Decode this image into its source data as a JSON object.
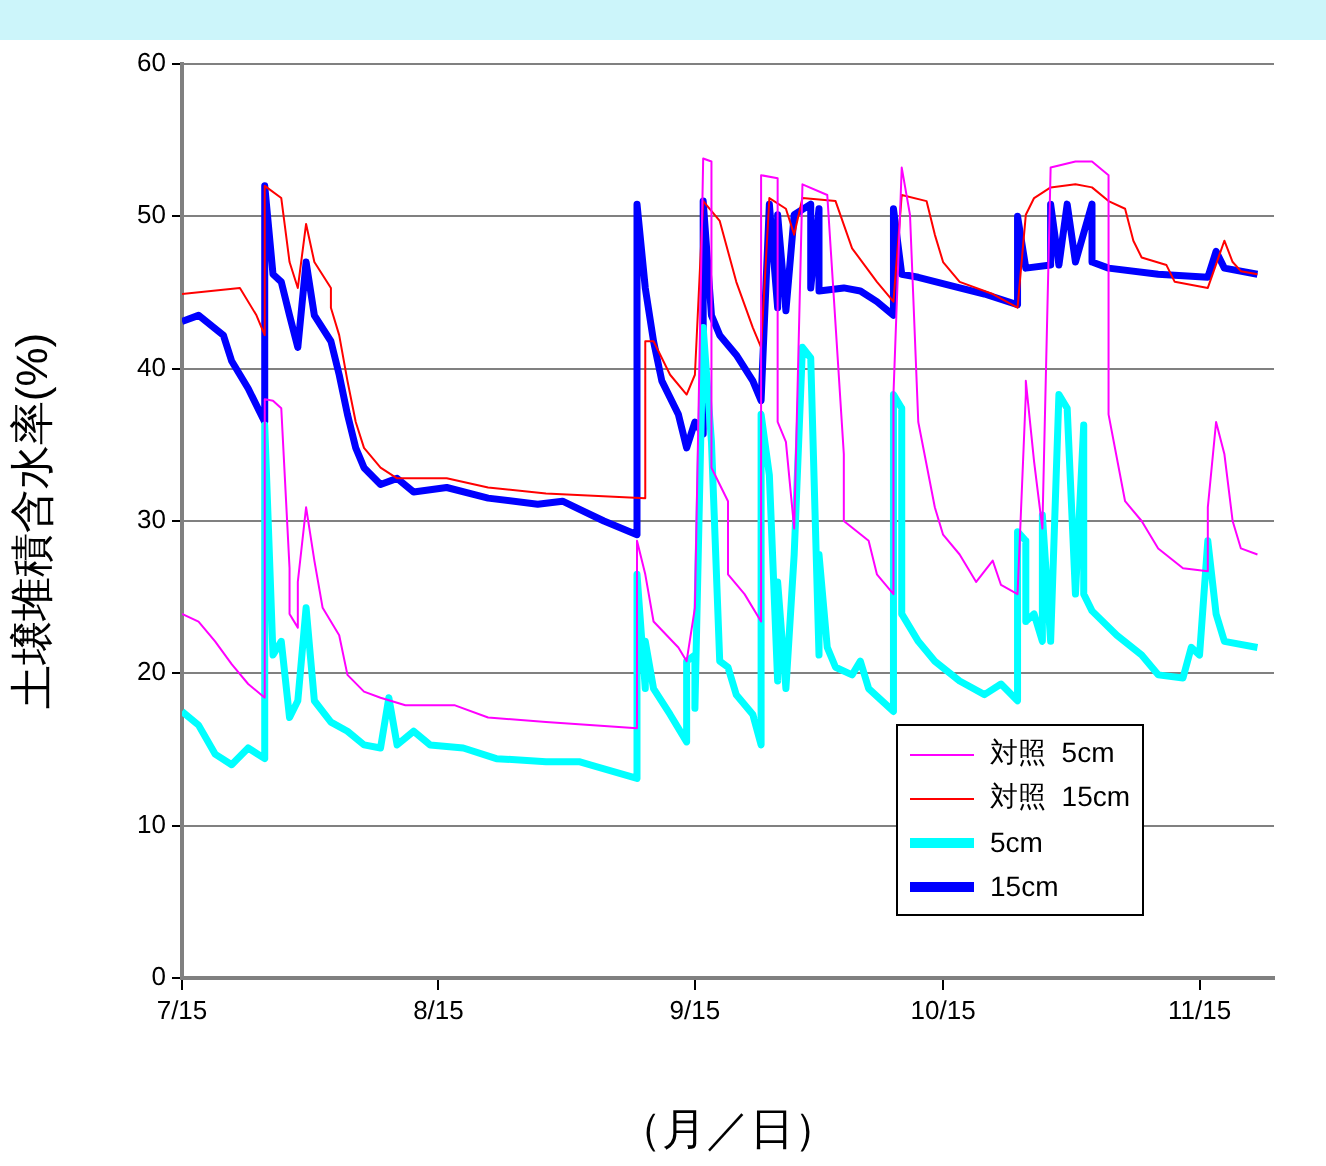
{
  "chart_data": {
    "type": "line",
    "xlabel": "（月／日）",
    "ylabel": "土壌堆積含水率(%)",
    "xlim": [
      "--07-15",
      "--11-24"
    ],
    "xticks": [
      {
        "value": "--07-15",
        "label": "7/15"
      },
      {
        "value": "--08-15",
        "label": "8/15"
      },
      {
        "value": "--09-15",
        "label": "9/15"
      },
      {
        "value": "--10-15",
        "label": "10/15"
      },
      {
        "value": "--11-15",
        "label": "11/15"
      }
    ],
    "ylim": [
      0,
      60
    ],
    "yticks": [
      0,
      10,
      20,
      30,
      40,
      50,
      60
    ],
    "grid": "y",
    "legend": "bottom right",
    "marker": "none",
    "line_style": "solid",
    "series": [
      {
        "name": "対照  5cm",
        "color": "#ff00ff",
        "x": [
          "--07-15",
          "--07-17",
          "--07-19",
          "--07-21",
          "--07-23",
          "--07-25",
          "--07-25",
          "--07-26",
          "--07-27",
          "--07-28",
          "--07-28",
          "--07-29",
          "--07-29",
          "--07-30",
          "--07-31",
          "--08-01",
          "--08-03",
          "--08-04",
          "--08-06",
          "--08-08",
          "--08-11",
          "--08-17",
          "--08-21",
          "--08-28",
          "--09-08",
          "--09-08",
          "--09-09",
          "--09-10",
          "--09-13",
          "--09-14",
          "--09-15",
          "--09-16",
          "--09-17",
          "--09-17",
          "--09-19",
          "--09-19",
          "--09-21",
          "--09-23",
          "--09-23",
          "--09-25",
          "--09-25",
          "--09-26",
          "--09-27",
          "--09-28",
          "--10-01",
          "--10-03",
          "--10-03",
          "--10-06",
          "--10-07",
          "--10-09",
          "--10-09",
          "--10-10",
          "--10-11",
          "--10-12",
          "--10-14",
          "--10-15",
          "--10-17",
          "--10-19",
          "--10-21",
          "--10-22",
          "--10-24",
          "--10-25",
          "--10-25",
          "--10-26",
          "--10-27",
          "--10-28",
          "--10-31",
          "--11-02",
          "--11-04",
          "--11-04",
          "--11-06",
          "--11-08",
          "--11-10",
          "--11-13",
          "--11-16",
          "--11-16",
          "--11-17",
          "--11-18",
          "--11-19",
          "--11-20",
          "--11-22"
        ],
        "values": [
          23.9,
          23.4,
          22.1,
          20.6,
          19.3,
          18.4,
          38,
          37.9,
          37.4,
          26.9,
          23.9,
          23,
          26,
          30.9,
          27.4,
          24.3,
          22.5,
          19.9,
          18.8,
          18.4,
          17.9,
          17.9,
          17.1,
          16.8,
          16.4,
          28.7,
          26.5,
          23.4,
          21.7,
          20.8,
          24.3,
          53.8,
          53.6,
          33.5,
          31.3,
          26.5,
          25.2,
          23.4,
          52.7,
          52.5,
          36.5,
          35.2,
          29.5,
          52.1,
          51.4,
          34.4,
          30,
          28.7,
          26.5,
          25.2,
          38.3,
          53.2,
          50.1,
          36.5,
          30.9,
          29.1,
          27.8,
          26,
          27.4,
          25.8,
          25.2,
          38.3,
          39.2,
          33.9,
          29.5,
          53.2,
          53.6,
          53.6,
          52.7,
          37,
          31.3,
          30,
          28.2,
          26.9,
          26.7,
          30.9,
          36.5,
          34.4,
          30,
          28.2,
          27.8
        ]
      },
      {
        "name": "対照  15cm",
        "color": "#ff0000",
        "x": [
          "--07-15",
          "--07-22",
          "--07-24",
          "--07-25",
          "--07-25",
          "--07-27",
          "--07-28",
          "--07-29",
          "--07-30",
          "--07-31",
          "--08-02",
          "--08-02",
          "--08-03",
          "--08-04",
          "--08-05",
          "--08-06",
          "--08-08",
          "--08-10",
          "--08-16",
          "--08-21",
          "--08-28",
          "--09-09",
          "--09-09",
          "--09-10",
          "--09-12",
          "--09-14",
          "--09-15",
          "--09-16",
          "--09-18",
          "--09-20",
          "--09-22",
          "--09-23",
          "--09-24",
          "--09-26",
          "--09-27",
          "--09-28",
          "--10-02",
          "--10-04",
          "--10-07",
          "--10-09",
          "--10-10",
          "--10-13",
          "--10-14",
          "--10-15",
          "--10-17",
          "--10-21",
          "--10-24",
          "--10-25",
          "--10-26",
          "--10-28",
          "--10-31",
          "--11-02",
          "--11-04",
          "--11-06",
          "--11-07",
          "--11-08",
          "--11-11",
          "--11-12",
          "--11-16",
          "--11-18",
          "--11-19",
          "--11-20",
          "--11-22"
        ],
        "values": [
          44.9,
          45.3,
          43.5,
          42.2,
          52,
          51.2,
          47,
          45.3,
          49.5,
          47,
          45.3,
          44,
          42.2,
          39.2,
          36.5,
          34.8,
          33.5,
          32.8,
          32.8,
          32.2,
          31.8,
          31.5,
          41.8,
          41.8,
          39.6,
          38.3,
          39.6,
          51,
          49.7,
          45.7,
          42.7,
          41.4,
          51.2,
          50.5,
          48.8,
          51.2,
          51,
          47.9,
          45.7,
          44.4,
          51.4,
          51,
          48.8,
          47,
          45.7,
          44.9,
          44,
          50.1,
          51.2,
          51.9,
          52.1,
          51.9,
          51,
          50.5,
          48.4,
          47.3,
          46.8,
          45.7,
          45.3,
          48.4,
          47,
          46.4,
          46.2
        ]
      },
      {
        "name": "5cm",
        "color": "#00ffff",
        "x": [
          "--07-15",
          "--07-17",
          "--07-19",
          "--07-21",
          "--07-23",
          "--07-25",
          "--07-25",
          "--07-26",
          "--07-27",
          "--07-28",
          "--07-29",
          "--07-30",
          "--07-31",
          "--08-02",
          "--08-04",
          "--08-06",
          "--08-08",
          "--08-09",
          "--08-10",
          "--08-12",
          "--08-14",
          "--08-18",
          "--08-22",
          "--08-28",
          "--09-01",
          "--09-08",
          "--09-08",
          "--09-09",
          "--09-09",
          "--09-10",
          "--09-12",
          "--09-14",
          "--09-14",
          "--09-15",
          "--09-15",
          "--09-16",
          "--09-17",
          "--09-18",
          "--09-19",
          "--09-20",
          "--09-22",
          "--09-23",
          "--09-23",
          "--09-24",
          "--09-25",
          "--09-25",
          "--09-26",
          "--09-27",
          "--09-28",
          "--09-29",
          "--09-30",
          "--09-30",
          "--10-01",
          "--10-02",
          "--10-04",
          "--10-05",
          "--10-06",
          "--10-09",
          "--10-09",
          "--10-10",
          "--10-10",
          "--10-12",
          "--10-14",
          "--10-17",
          "--10-20",
          "--10-22",
          "--10-24",
          "--10-24",
          "--10-25",
          "--10-25",
          "--10-26",
          "--10-27",
          "--10-27",
          "--10-28",
          "--10-29",
          "--10-30",
          "--10-31",
          "--11-01",
          "--11-01",
          "--11-02",
          "--11-05",
          "--11-08",
          "--11-10",
          "--11-13",
          "--11-14",
          "--11-15",
          "--11-16",
          "--11-17",
          "--11-18",
          "--11-22"
        ],
        "values": [
          17.5,
          16.6,
          14.7,
          14,
          15.1,
          14.4,
          36.3,
          21.2,
          22.1,
          17.1,
          18.2,
          24.3,
          18.2,
          16.8,
          16.2,
          15.3,
          15.1,
          18.4,
          15.3,
          16.2,
          15.3,
          15.1,
          14.4,
          14.2,
          14.2,
          13.1,
          26.5,
          19,
          22.1,
          19,
          17.3,
          15.5,
          20.8,
          21.2,
          17.7,
          42.7,
          35.2,
          20.8,
          20.4,
          18.6,
          17.3,
          15.3,
          37,
          33,
          19.5,
          26,
          19,
          27.8,
          41.4,
          40.7,
          21.2,
          27.8,
          21.7,
          20.4,
          19.9,
          20.8,
          19,
          17.5,
          38.3,
          37.4,
          23.9,
          22.1,
          20.8,
          19.5,
          18.6,
          19.3,
          18.2,
          29.3,
          28.7,
          23.4,
          23.9,
          22.1,
          30.4,
          22.1,
          38.3,
          37.4,
          25.2,
          36.3,
          25.2,
          24.1,
          22.5,
          21.2,
          19.9,
          19.7,
          21.7,
          21.2,
          28.7,
          23.9,
          22.1,
          21.7
        ]
      },
      {
        "name": "15cm",
        "color": "#0000ff",
        "x": [
          "--07-15",
          "--07-17",
          "--07-20",
          "--07-21",
          "--07-23",
          "--07-25",
          "--07-25",
          "--07-26",
          "--07-27",
          "--07-28",
          "--07-29",
          "--07-30",
          "--07-31",
          "--08-02",
          "--08-03",
          "--08-04",
          "--08-05",
          "--08-06",
          "--08-08",
          "--08-10",
          "--08-12",
          "--08-16",
          "--08-21",
          "--08-27",
          "--08-30",
          "--09-04",
          "--09-08",
          "--09-08",
          "--09-09",
          "--09-10",
          "--09-11",
          "--09-13",
          "--09-14",
          "--09-15",
          "--09-16",
          "--09-16",
          "--09-17",
          "--09-18",
          "--09-20",
          "--09-22",
          "--09-23",
          "--09-24",
          "--09-25",
          "--09-25",
          "--09-26",
          "--09-27",
          "--09-29",
          "--09-29",
          "--09-30",
          "--09-30",
          "--10-03",
          "--10-05",
          "--10-07",
          "--10-09",
          "--10-09",
          "--10-10",
          "--10-12",
          "--10-17",
          "--10-20",
          "--10-24",
          "--10-24",
          "--10-25",
          "--10-28",
          "--10-28",
          "--10-29",
          "--10-30",
          "--10-31",
          "--11-02",
          "--11-02",
          "--11-04",
          "--11-10",
          "--11-16",
          "--11-17",
          "--11-18",
          "--11-22"
        ],
        "values": [
          43.1,
          43.5,
          42.2,
          40.5,
          38.7,
          36.5,
          52,
          46.2,
          45.7,
          43.5,
          41.4,
          47,
          43.5,
          41.8,
          39.6,
          37,
          34.8,
          33.5,
          32.4,
          32.8,
          31.9,
          32.2,
          31.5,
          31.1,
          31.3,
          30,
          29.1,
          50.8,
          45.3,
          41.8,
          39.2,
          37,
          34.8,
          36.5,
          35.7,
          51,
          43.5,
          42.2,
          40.9,
          39.2,
          37.9,
          50.8,
          44,
          50.1,
          43.8,
          50.1,
          50.8,
          45.3,
          50.5,
          45.1,
          45.3,
          45.1,
          44.4,
          43.5,
          50.5,
          46.2,
          46,
          45.3,
          44.9,
          44.2,
          50,
          46.6,
          46.8,
          50.8,
          46.8,
          50.8,
          47,
          50.8,
          47,
          46.6,
          46.2,
          46,
          47.7,
          46.6,
          46.2
        ]
      }
    ]
  }
}
